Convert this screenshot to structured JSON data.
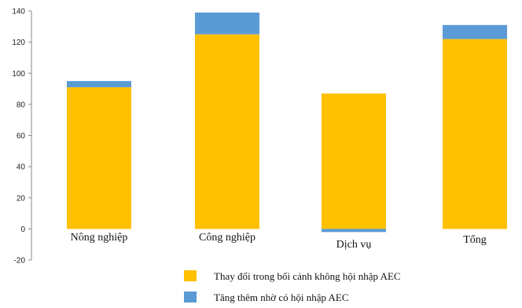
{
  "chart_data": {
    "type": "bar",
    "stacked": true,
    "categories": [
      "Nông nghiệp",
      "Công nghiệp",
      "Dịch vụ",
      "Tổng"
    ],
    "series": [
      {
        "name": "Thay đổi trong bối cảnh không hội nhập AEC",
        "values": [
          91,
          125,
          87,
          122
        ],
        "color": "#FFC000"
      },
      {
        "name": "Tăng thêm nhờ có hội nhập AEC",
        "values": [
          4,
          14,
          -2,
          9
        ],
        "color": "#5B9BD5"
      }
    ],
    "ylim": [
      -20,
      140
    ],
    "yticks": [
      -20,
      0,
      20,
      40,
      60,
      80,
      100,
      120,
      140
    ],
    "legend_position": "bottom",
    "grid": false
  }
}
